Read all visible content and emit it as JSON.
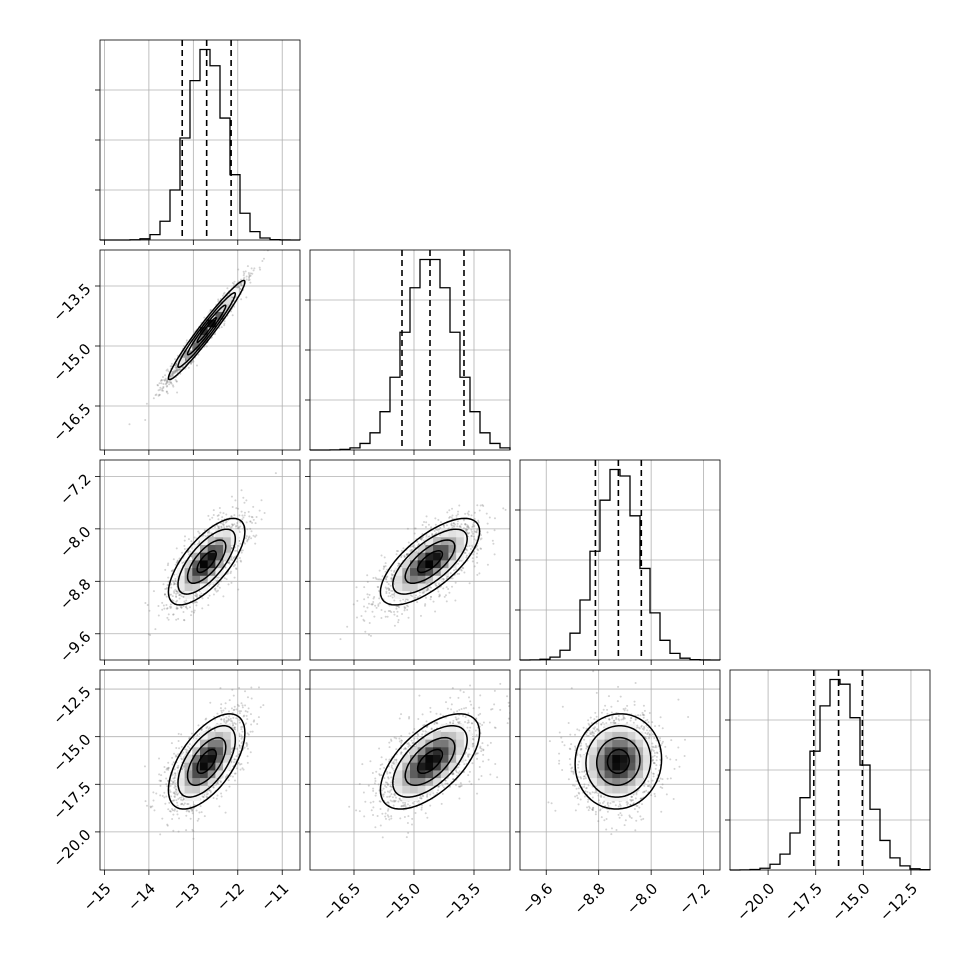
{
  "chart_data": {
    "type": "corner",
    "n_params": 4,
    "grid": true,
    "params": [
      {
        "mean": -12.7,
        "sd": 0.43,
        "range": [
          -15.1,
          -10.6
        ],
        "ticks": [
          -15,
          -14,
          -13,
          -12,
          -11
        ],
        "tick_labels": [
          "−15",
          "−14",
          "−13",
          "−12",
          "−11"
        ],
        "quantiles": [
          -13.25,
          -12.7,
          -12.15
        ]
      },
      {
        "mean": -14.6,
        "sd": 0.62,
        "range": [
          -17.6,
          -12.6
        ],
        "ticks": [
          -16.5,
          -15.0,
          -13.5
        ],
        "tick_labels": [
          "−16.5",
          "−15.0",
          "−13.5"
        ],
        "quantiles": [
          -15.3,
          -14.6,
          -13.75
        ]
      },
      {
        "mean": -8.5,
        "sd": 0.33,
        "range": [
          -10.0,
          -6.95
        ],
        "ticks": [
          -9.6,
          -8.8,
          -8.0,
          -7.2
        ],
        "tick_labels": [
          "−9.6",
          "−8.8",
          "−8.0",
          "−7.2"
        ],
        "quantiles": [
          -8.85,
          -8.5,
          -8.15
        ]
      },
      {
        "mean": -16.3,
        "sd": 1.25,
        "range": [
          -22.0,
          -11.5
        ],
        "ticks": [
          -20.0,
          -17.5,
          -15.0,
          -12.5
        ],
        "tick_labels": [
          "−20.0",
          "−17.5",
          "−15.0",
          "−12.5"
        ],
        "quantiles": [
          -17.6,
          -16.3,
          -15.05
        ]
      }
    ],
    "correlations": [
      [
        1,
        0.97,
        0.7,
        0.6
      ],
      [
        0.97,
        1,
        0.7,
        0.6
      ],
      [
        0.7,
        0.7,
        1,
        0.05
      ],
      [
        0.6,
        0.6,
        0.05,
        1
      ]
    ],
    "histogram_bins": 20,
    "contour_levels_sigma": [
      0.5,
      1.0,
      1.5,
      2.0
    ],
    "colors": {
      "ink": "#000000",
      "grid": "#b0b0b0",
      "scatter": "#808080"
    }
  }
}
